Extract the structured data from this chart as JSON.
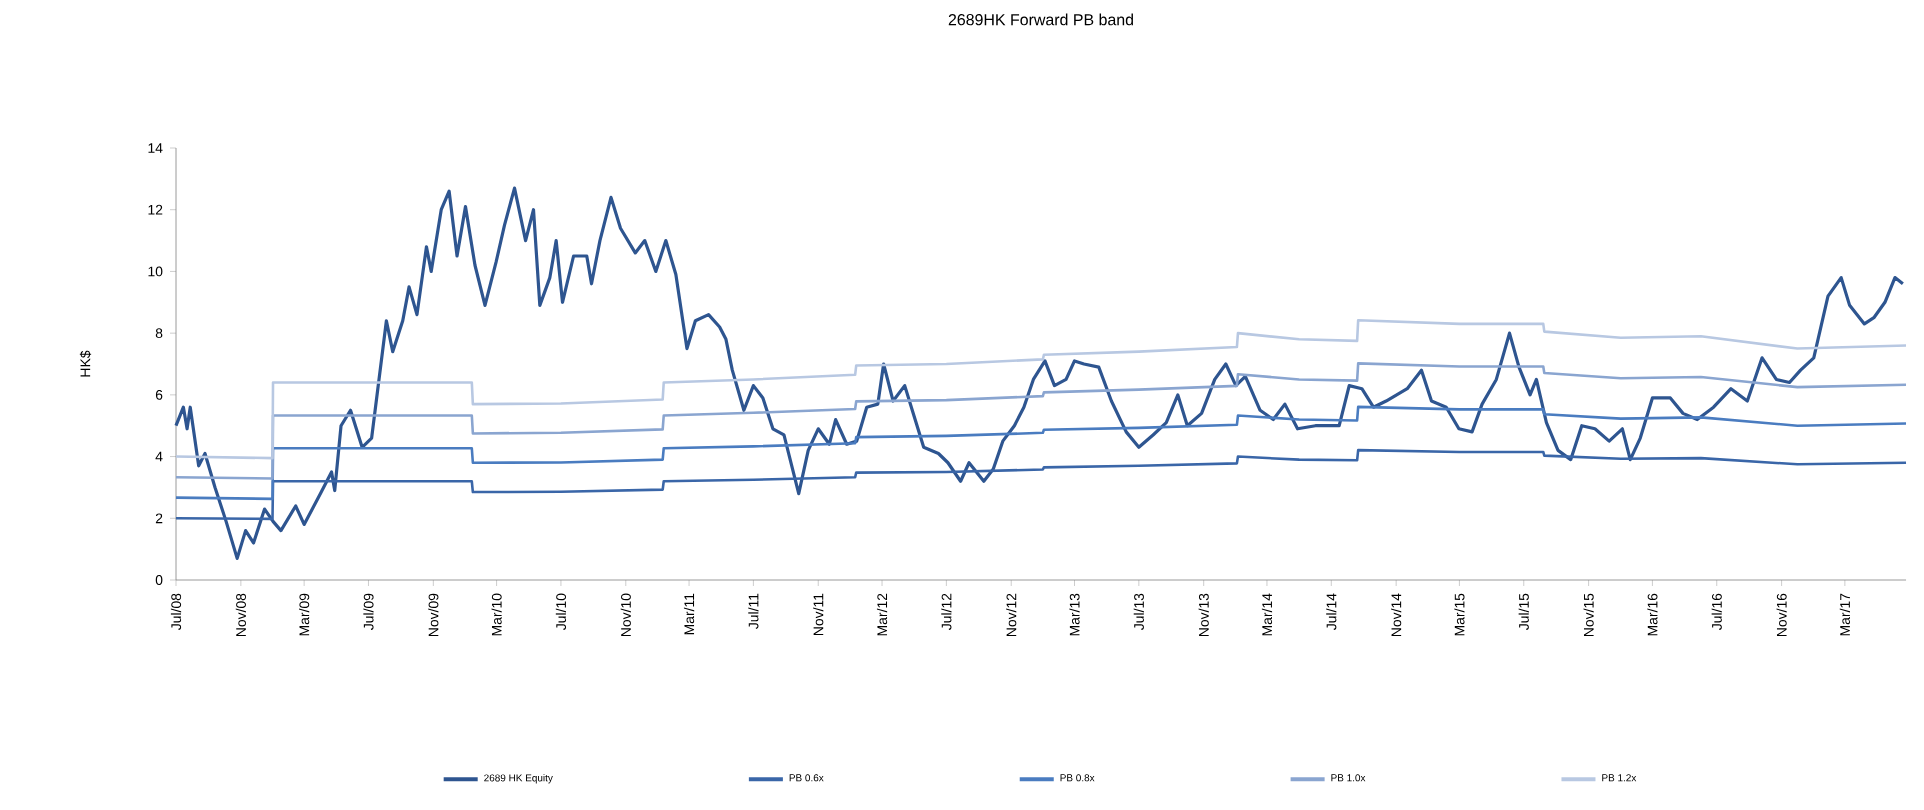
{
  "chart_data": {
    "type": "line",
    "title": "2689HK Forward PB band",
    "ylabel": "HK$",
    "legend": "bottom",
    "xlim": [
      "2008-07-01",
      "2017-06-25"
    ],
    "ylim": [
      0,
      14
    ],
    "yticks": [
      0,
      2,
      4,
      6,
      8,
      10,
      12,
      14
    ],
    "xticks": [
      {
        "value": "2008-07-01",
        "label": "Jul/08"
      },
      {
        "value": "2008-11-01",
        "label": "Nov/08"
      },
      {
        "value": "2009-03-01",
        "label": "Mar/09"
      },
      {
        "value": "2009-07-01",
        "label": "Jul/09"
      },
      {
        "value": "2009-11-01",
        "label": "Nov/09"
      },
      {
        "value": "2010-03-01",
        "label": "Mar/10"
      },
      {
        "value": "2010-07-01",
        "label": "Jul/10"
      },
      {
        "value": "2010-11-01",
        "label": "Nov/10"
      },
      {
        "value": "2011-03-01",
        "label": "Mar/11"
      },
      {
        "value": "2011-07-01",
        "label": "Jul/11"
      },
      {
        "value": "2011-11-01",
        "label": "Nov/11"
      },
      {
        "value": "2012-03-01",
        "label": "Mar/12"
      },
      {
        "value": "2012-07-01",
        "label": "Jul/12"
      },
      {
        "value": "2012-11-01",
        "label": "Nov/12"
      },
      {
        "value": "2013-03-01",
        "label": "Mar/13"
      },
      {
        "value": "2013-07-01",
        "label": "Jul/13"
      },
      {
        "value": "2013-11-01",
        "label": "Nov/13"
      },
      {
        "value": "2014-03-01",
        "label": "Mar/14"
      },
      {
        "value": "2014-07-01",
        "label": "Jul/14"
      },
      {
        "value": "2014-11-01",
        "label": "Nov/14"
      },
      {
        "value": "2015-03-01",
        "label": "Mar/15"
      },
      {
        "value": "2015-07-01",
        "label": "Jul/15"
      },
      {
        "value": "2015-11-01",
        "label": "Nov/15"
      },
      {
        "value": "2016-03-01",
        "label": "Mar/16"
      },
      {
        "value": "2016-07-01",
        "label": "Jul/16"
      },
      {
        "value": "2016-11-01",
        "label": "Nov/16"
      },
      {
        "value": "2017-03-01",
        "label": "Mar/17"
      }
    ],
    "series": [
      {
        "name": "2689 HK Equity",
        "color": "#2e5590",
        "x": [
          "2008-07-01",
          "2008-07-15",
          "2008-07-22",
          "2008-07-28",
          "2008-08-13",
          "2008-08-25",
          "2008-09-13",
          "2008-10-04",
          "2008-10-25",
          "2008-11-10",
          "2008-11-25",
          "2008-12-16",
          "2009-01-01",
          "2009-01-16",
          "2009-02-13",
          "2009-03-01",
          "2009-04-01",
          "2009-04-22",
          "2009-04-28",
          "2009-05-10",
          "2009-05-28",
          "2009-06-19",
          "2009-07-07",
          "2009-08-04",
          "2009-08-16",
          "2009-09-04",
          "2009-09-16",
          "2009-10-01",
          "2009-10-19",
          "2009-10-28",
          "2009-11-16",
          "2009-12-01",
          "2009-12-16",
          "2010-01-01",
          "2010-01-19",
          "2010-02-07",
          "2010-02-28",
          "2010-03-16",
          "2010-04-04",
          "2010-04-25",
          "2010-05-10",
          "2010-05-22",
          "2010-06-10",
          "2010-06-22",
          "2010-07-04",
          "2010-07-25",
          "2010-08-19",
          "2010-08-28",
          "2010-09-13",
          "2010-10-04",
          "2010-10-22",
          "2010-11-19",
          "2010-12-07",
          "2010-12-28",
          "2011-01-16",
          "2011-02-04",
          "2011-02-25",
          "2011-03-13",
          "2011-04-07",
          "2011-04-28",
          "2011-05-10",
          "2011-05-22",
          "2011-06-13",
          "2011-07-01",
          "2011-07-19",
          "2011-08-07",
          "2011-08-28",
          "2011-09-25",
          "2011-10-13",
          "2011-11-01",
          "2011-11-22",
          "2011-12-04",
          "2011-12-25",
          "2012-01-13",
          "2012-02-01",
          "2012-02-22",
          "2012-03-04",
          "2012-03-22",
          "2012-04-13",
          "2012-05-01",
          "2012-05-19",
          "2012-06-16",
          "2012-07-04",
          "2012-07-28",
          "2012-08-13",
          "2012-09-10",
          "2012-09-28",
          "2012-10-16",
          "2012-11-07",
          "2012-11-25",
          "2012-12-13",
          "2013-01-04",
          "2013-01-22",
          "2013-02-13",
          "2013-03-01",
          "2013-03-19",
          "2013-04-16",
          "2013-05-10",
          "2013-06-07",
          "2013-07-01",
          "2013-07-28",
          "2013-08-22",
          "2013-09-13",
          "2013-10-01",
          "2013-10-28",
          "2013-11-22",
          "2013-12-13",
          "2014-01-01",
          "2014-01-19",
          "2014-02-16",
          "2014-03-13",
          "2014-04-04",
          "2014-04-28",
          "2014-06-01",
          "2014-07-16",
          "2014-08-04",
          "2014-08-28",
          "2014-09-19",
          "2014-10-13",
          "2014-11-22",
          "2014-12-19",
          "2015-01-07",
          "2015-02-04",
          "2015-02-28",
          "2015-03-25",
          "2015-04-13",
          "2015-05-10",
          "2015-06-04",
          "2015-06-22",
          "2015-07-13",
          "2015-07-25",
          "2015-08-13",
          "2015-09-04",
          "2015-09-28",
          "2015-10-19",
          "2015-11-13",
          "2015-12-10",
          "2016-01-04",
          "2016-01-19",
          "2016-02-07",
          "2016-03-01",
          "2016-04-04",
          "2016-04-28",
          "2016-05-25",
          "2016-06-25",
          "2016-07-28",
          "2016-08-28",
          "2016-09-25",
          "2016-10-22",
          "2016-11-16",
          "2016-12-07",
          "2017-01-01",
          "2017-01-28",
          "2017-02-22",
          "2017-03-10",
          "2017-04-07",
          "2017-04-25",
          "2017-05-16",
          "2017-06-04",
          "2017-06-19"
        ],
        "values": [
          5.0,
          5.6,
          4.9,
          5.6,
          3.7,
          4.1,
          3.0,
          1.9,
          0.7,
          1.6,
          1.2,
          2.3,
          1.9,
          1.6,
          2.4,
          1.8,
          2.8,
          3.5,
          2.9,
          5.0,
          5.5,
          4.3,
          4.6,
          8.4,
          7.4,
          8.4,
          9.5,
          8.6,
          10.8,
          10.0,
          12.0,
          12.6,
          10.5,
          12.1,
          10.2,
          8.9,
          10.3,
          11.5,
          12.7,
          11.0,
          12.0,
          8.9,
          9.8,
          11.0,
          9.0,
          10.5,
          10.5,
          9.6,
          11.0,
          12.4,
          11.4,
          10.6,
          11.0,
          10.0,
          11.0,
          9.9,
          7.5,
          8.4,
          8.6,
          8.2,
          7.8,
          6.8,
          5.5,
          6.3,
          5.9,
          4.9,
          4.7,
          2.8,
          4.2,
          4.9,
          4.4,
          5.2,
          4.4,
          4.5,
          5.6,
          5.7,
          7.0,
          5.8,
          6.3,
          5.3,
          4.3,
          4.1,
          3.8,
          3.2,
          3.8,
          3.2,
          3.6,
          4.5,
          5.0,
          5.6,
          6.5,
          7.1,
          6.3,
          6.5,
          7.1,
          7.0,
          6.9,
          5.8,
          4.8,
          4.3,
          4.7,
          5.1,
          6.0,
          5.0,
          5.4,
          6.5,
          7.0,
          6.3,
          6.6,
          5.5,
          5.2,
          5.7,
          4.9,
          5.0,
          5.0,
          6.3,
          6.2,
          5.6,
          5.8,
          6.2,
          6.8,
          5.8,
          5.6,
          4.9,
          4.8,
          5.7,
          6.5,
          8.0,
          6.9,
          6.0,
          6.5,
          5.1,
          4.2,
          3.9,
          5.0,
          4.9,
          4.5,
          4.9,
          3.9,
          4.6,
          5.9,
          5.9,
          5.4,
          5.2,
          5.6,
          6.2,
          5.8,
          7.2,
          6.5,
          6.4,
          6.8,
          7.2,
          9.2,
          9.8,
          8.9,
          8.3,
          8.5,
          9.0,
          9.8,
          9.6
        ]
      },
      {
        "name": "PB 0.6x",
        "color": "#3a66a8",
        "x": [
          "2008-07-01",
          "2008-12-31",
          "2009-01-01",
          "2010-01-13",
          "2010-01-15",
          "2010-07-01",
          "2011-01-10",
          "2011-01-12",
          "2011-07-01",
          "2012-01-10",
          "2012-01-12",
          "2012-07-01",
          "2012-12-31",
          "2013-01-02",
          "2013-07-01",
          "2014-01-03",
          "2014-01-05",
          "2014-05-01",
          "2014-08-19",
          "2014-08-21",
          "2015-03-01",
          "2015-08-07",
          "2015-08-09",
          "2016-01-01",
          "2016-06-01",
          "2016-12-01",
          "2017-06-25"
        ],
        "values": [
          2.0,
          1.98,
          3.2,
          3.2,
          2.85,
          2.86,
          2.93,
          3.2,
          3.25,
          3.33,
          3.48,
          3.5,
          3.58,
          3.65,
          3.7,
          3.78,
          4.0,
          3.9,
          3.88,
          4.21,
          4.15,
          4.15,
          4.03,
          3.93,
          3.95,
          3.75,
          3.8
        ]
      },
      {
        "name": "PB 0.8x",
        "color": "#4a7cc0",
        "x": [
          "2008-07-01",
          "2008-12-31",
          "2009-01-01",
          "2010-01-13",
          "2010-01-15",
          "2010-07-01",
          "2011-01-10",
          "2011-01-12",
          "2011-07-01",
          "2012-01-10",
          "2012-01-12",
          "2012-07-01",
          "2012-12-31",
          "2013-01-02",
          "2013-07-01",
          "2014-01-03",
          "2014-01-05",
          "2014-05-01",
          "2014-08-19",
          "2014-08-21",
          "2015-03-01",
          "2015-08-07",
          "2015-08-09",
          "2016-01-01",
          "2016-06-01",
          "2016-12-01",
          "2017-06-25"
        ],
        "values": [
          2.67,
          2.63,
          4.27,
          4.27,
          3.8,
          3.81,
          3.9,
          4.27,
          4.33,
          4.43,
          4.63,
          4.67,
          4.77,
          4.87,
          4.93,
          5.03,
          5.33,
          5.2,
          5.17,
          5.61,
          5.53,
          5.53,
          5.37,
          5.23,
          5.27,
          5.0,
          5.07
        ]
      },
      {
        "name": "PB 1.0x",
        "color": "#8aa5d0",
        "x": [
          "2008-07-01",
          "2008-12-31",
          "2009-01-01",
          "2010-01-13",
          "2010-01-15",
          "2010-07-01",
          "2011-01-10",
          "2011-01-12",
          "2011-07-01",
          "2012-01-10",
          "2012-01-12",
          "2012-07-01",
          "2012-12-31",
          "2013-01-02",
          "2013-07-01",
          "2014-01-03",
          "2014-01-05",
          "2014-05-01",
          "2014-08-19",
          "2014-08-21",
          "2015-03-01",
          "2015-08-07",
          "2015-08-09",
          "2016-01-01",
          "2016-06-01",
          "2016-12-01",
          "2017-06-25"
        ],
        "values": [
          3.33,
          3.29,
          5.33,
          5.33,
          4.75,
          4.77,
          4.88,
          5.33,
          5.42,
          5.54,
          5.79,
          5.83,
          5.96,
          6.08,
          6.17,
          6.29,
          6.67,
          6.5,
          6.46,
          7.02,
          6.92,
          6.92,
          6.71,
          6.54,
          6.58,
          6.25,
          6.33
        ]
      },
      {
        "name": "PB 1.2x",
        "color": "#b8c8e2",
        "x": [
          "2008-07-01",
          "2008-12-31",
          "2009-01-01",
          "2010-01-13",
          "2010-01-15",
          "2010-07-01",
          "2011-01-10",
          "2011-01-12",
          "2011-07-01",
          "2012-01-10",
          "2012-01-12",
          "2012-07-01",
          "2012-12-31",
          "2013-01-02",
          "2013-07-01",
          "2014-01-03",
          "2014-01-05",
          "2014-05-01",
          "2014-08-19",
          "2014-08-21",
          "2015-03-01",
          "2015-08-07",
          "2015-08-09",
          "2016-01-01",
          "2016-06-01",
          "2016-12-01",
          "2017-06-25"
        ],
        "values": [
          4.0,
          3.95,
          6.4,
          6.4,
          5.7,
          5.72,
          5.85,
          6.4,
          6.5,
          6.65,
          6.95,
          7.0,
          7.15,
          7.3,
          7.4,
          7.55,
          8.0,
          7.8,
          7.75,
          8.42,
          8.3,
          8.3,
          8.05,
          7.85,
          7.9,
          7.5,
          7.6
        ]
      }
    ]
  }
}
